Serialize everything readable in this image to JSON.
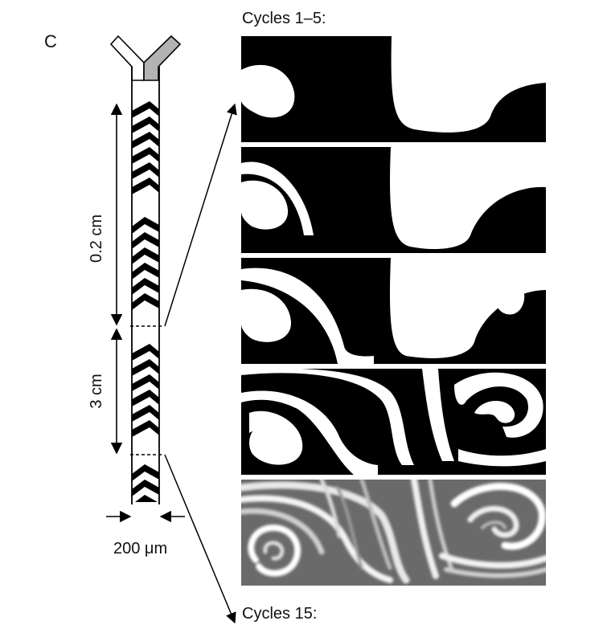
{
  "panel_letter": "C",
  "captions": {
    "top": "Cycles 1–5:",
    "bottom": "Cycles 15:"
  },
  "dimensions": {
    "segment_top": "0.2 cm",
    "segment_bottom": "3 cm",
    "channel_width": "200 μm"
  },
  "panels": [
    {
      "name": "cross-section-cycle-1"
    },
    {
      "name": "cross-section-cycle-2"
    },
    {
      "name": "cross-section-cycle-3"
    },
    {
      "name": "cross-section-cycle-4"
    },
    {
      "name": "cross-section-cycle-5"
    }
  ],
  "colors": {
    "fluid_a": "#000000",
    "fluid_b": "#ffffff",
    "inlet_fill": "#b3b3b3"
  }
}
